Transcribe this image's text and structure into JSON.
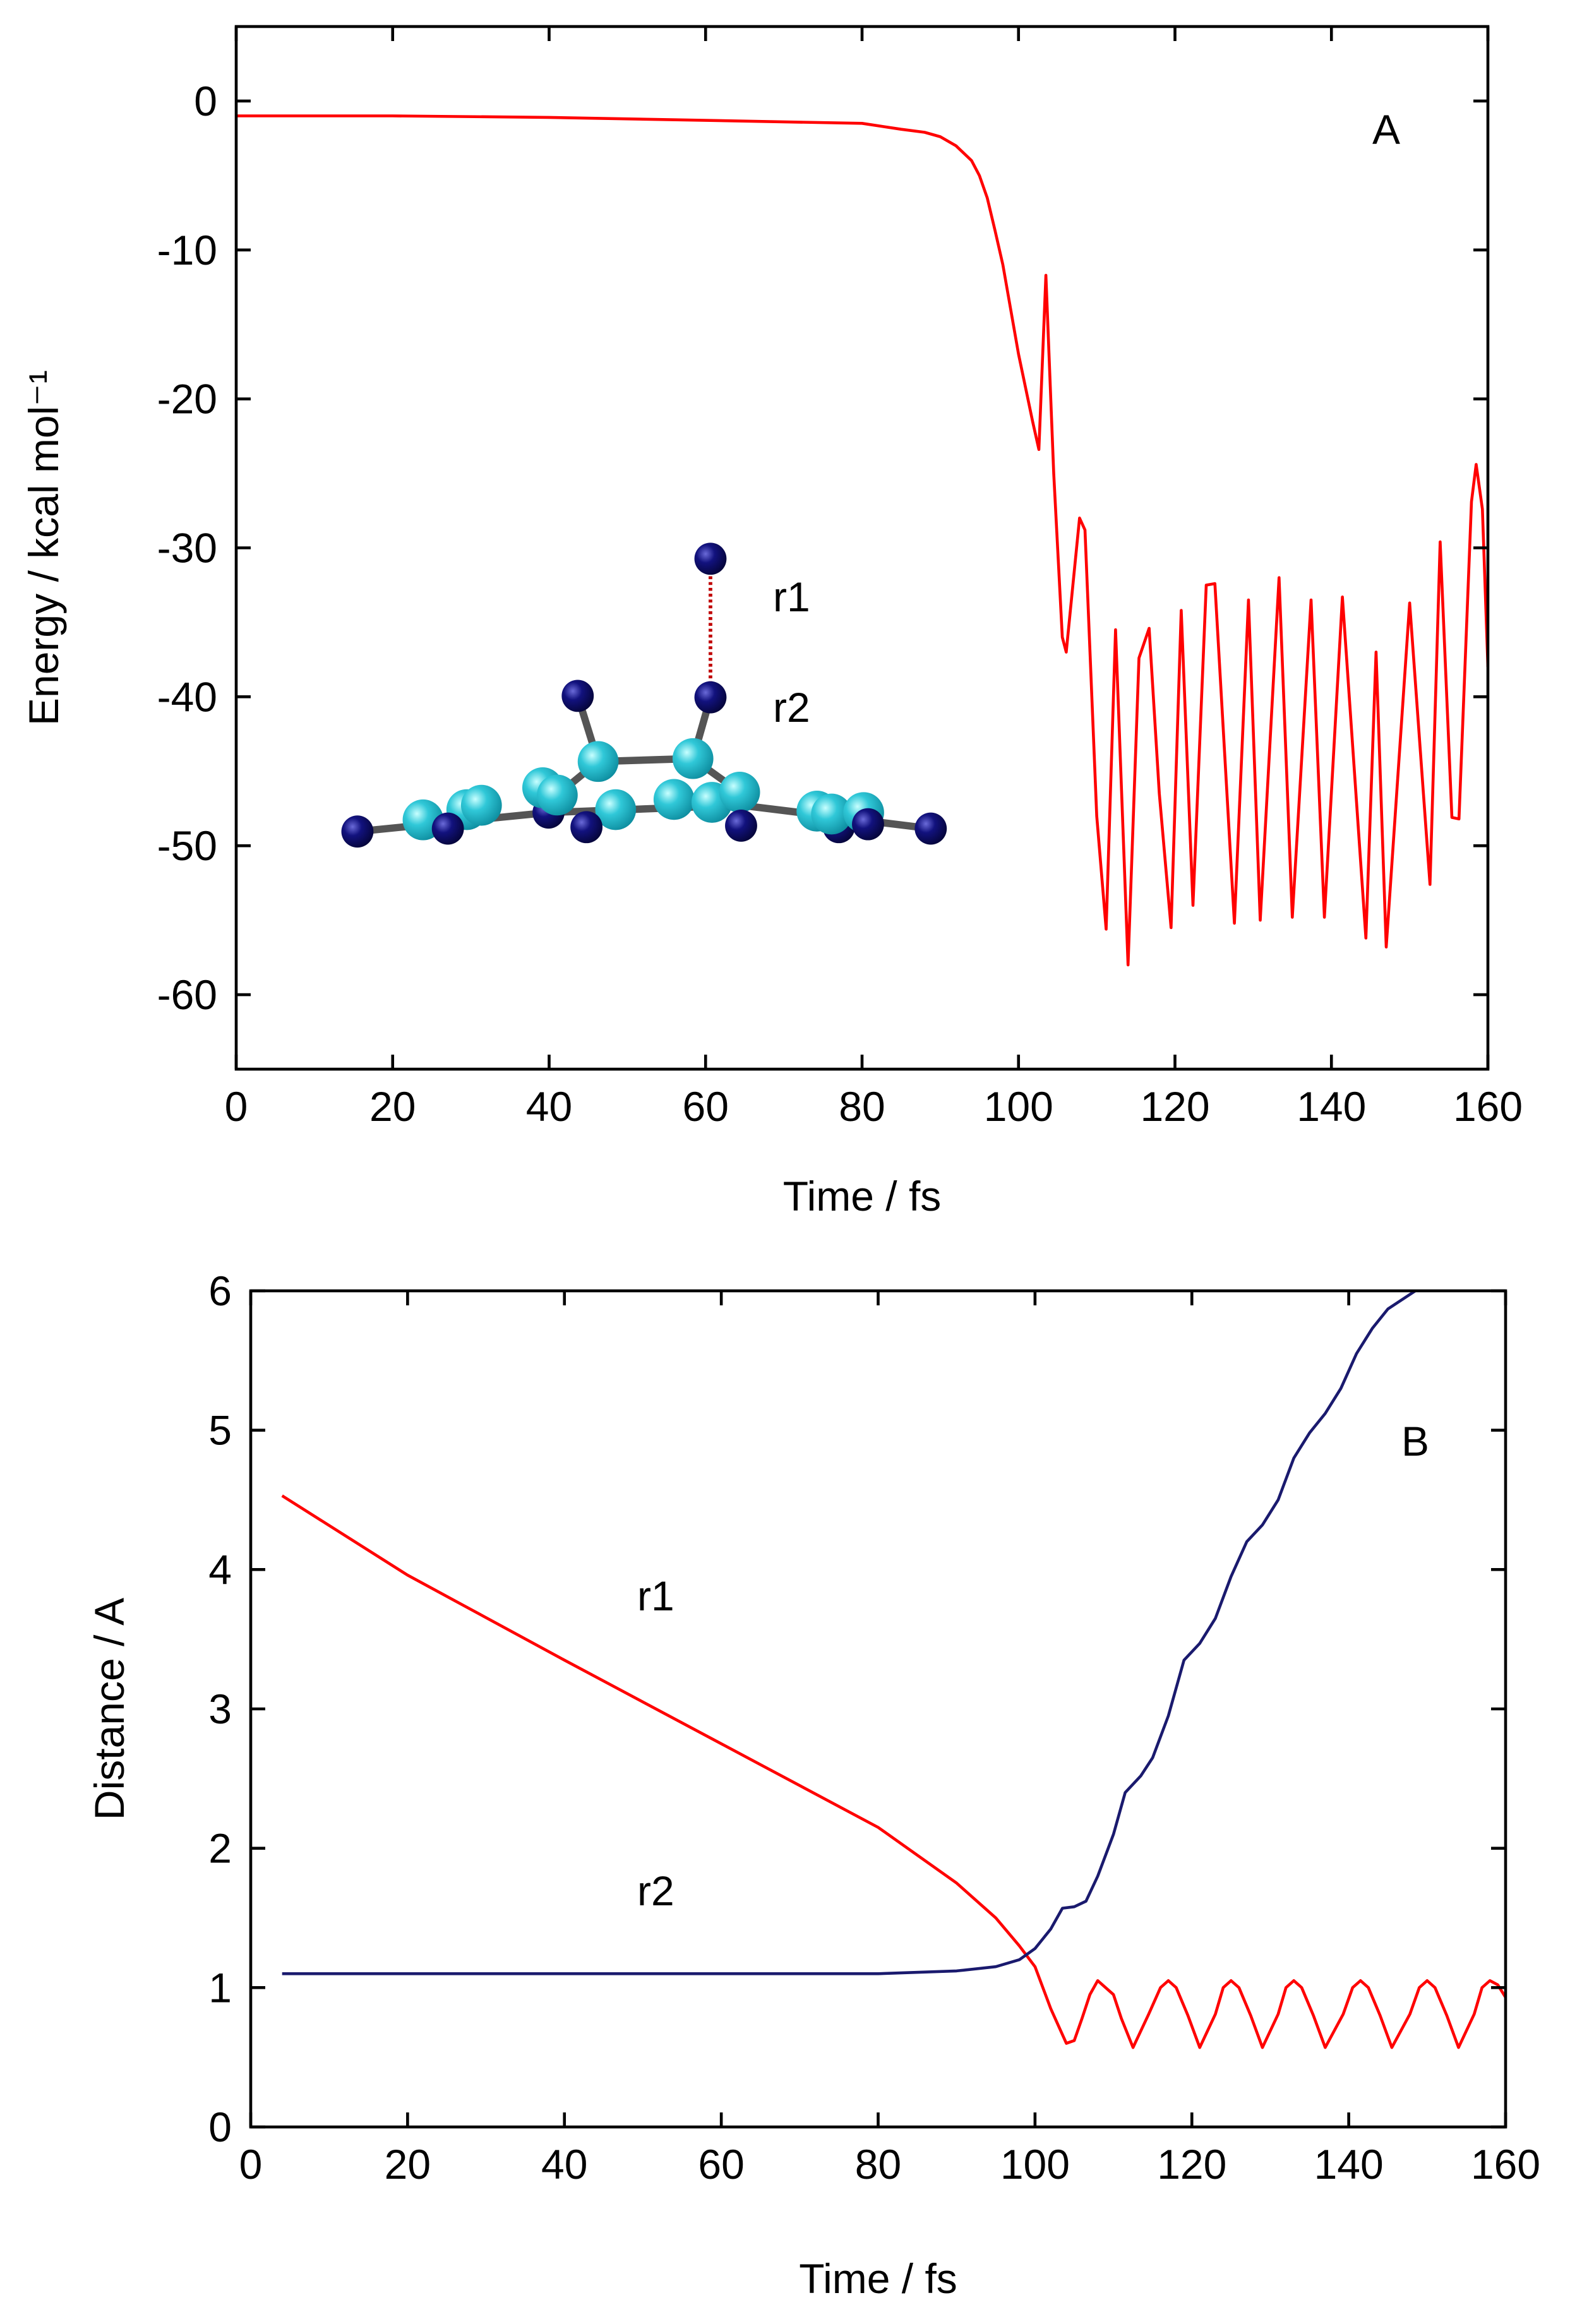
{
  "chart_data": [
    {
      "type": "line",
      "panel_label": "A",
      "x_label": "Time / fs",
      "y_label": "Energy / kcal mol⁻¹",
      "xlim": [
        0,
        160
      ],
      "ylim": [
        -65,
        5
      ],
      "xticks": [
        0,
        20,
        40,
        60,
        80,
        100,
        120,
        140,
        160
      ],
      "yticks": [
        -60,
        -50,
        -40,
        -30,
        -20,
        -10,
        0
      ],
      "annotations": [
        "r1",
        "r2"
      ],
      "series": [
        {
          "color": "#ff0000",
          "x": [
            0,
            20,
            40,
            60,
            80,
            85,
            88,
            90,
            92,
            94,
            95,
            96,
            97,
            98,
            99,
            100,
            100.8,
            101.8,
            102.6,
            103.5,
            104.5,
            105.6,
            106.1,
            107.8,
            108.5,
            110,
            111.2,
            112.4,
            114,
            115.4,
            116.7,
            118,
            119.5,
            120.8,
            122.3,
            124,
            125.1,
            127.6,
            129.4,
            130.9,
            133.3,
            135,
            137.4,
            139.1,
            141.4,
            144.4,
            145.7,
            147,
            150,
            152.6,
            153.9,
            155.4,
            156.3,
            157.9,
            158.5,
            159.3,
            160
          ],
          "values": [
            -1,
            -1,
            -1.1,
            -1.3,
            -1.5,
            -1.9,
            -2.1,
            -2.4,
            -3,
            -4,
            -5,
            -6.5,
            -8.7,
            -11,
            -14,
            -17,
            -19,
            -21.5,
            -23.4,
            -11.7,
            -25,
            -36,
            -37,
            -28,
            -28.8,
            -48,
            -55.6,
            -35.5,
            -58,
            -37.4,
            -35.4,
            -46.5,
            -55.5,
            -34.2,
            -54,
            -32.5,
            -32.4,
            -55.2,
            -33.5,
            -55,
            -32,
            -54.8,
            -33.5,
            -54.8,
            -33.3,
            -56.2,
            -37,
            -56.8,
            -33.7,
            -52.6,
            -29.6,
            -48.1,
            -48.2,
            -26.9,
            -24.4,
            -27.4,
            -38
          ]
        }
      ]
    },
    {
      "type": "line",
      "panel_label": "B",
      "x_label": "Time / fs",
      "y_label": "Distance / A",
      "xlim": [
        0,
        160
      ],
      "ylim": [
        0,
        6
      ],
      "xticks": [
        0,
        20,
        40,
        60,
        80,
        100,
        120,
        140,
        160
      ],
      "yticks": [
        0,
        1,
        2,
        3,
        4,
        5,
        6
      ],
      "annotations": [
        "r1",
        "r2"
      ],
      "series": [
        {
          "color": "#ff0000",
          "x": [
            4,
            20,
            40,
            60,
            80,
            90,
            95,
            98,
            100,
            102,
            104,
            105,
            106,
            107,
            108,
            110,
            111,
            112.5,
            114.5,
            116,
            117,
            118,
            119.5,
            121,
            123,
            124,
            125,
            126,
            127.5,
            129,
            131,
            132,
            133,
            134,
            135.5,
            137,
            139.3,
            140.5,
            141.5,
            142.5,
            144,
            145.5,
            147.8,
            149,
            150,
            151,
            152.5,
            154,
            156,
            157,
            158,
            159,
            160
          ],
          "values": [
            4.53,
            3.96,
            3.35,
            2.75,
            2.15,
            1.75,
            1.5,
            1.3,
            1.15,
            0.85,
            0.6,
            0.62,
            0.78,
            0.95,
            1.05,
            0.95,
            0.78,
            0.57,
            0.81,
            1.0,
            1.05,
            1.0,
            0.8,
            0.57,
            0.81,
            1.0,
            1.05,
            1.0,
            0.8,
            0.57,
            0.81,
            1.0,
            1.05,
            1.0,
            0.8,
            0.57,
            0.81,
            1.0,
            1.05,
            1.0,
            0.8,
            0.57,
            0.81,
            1.0,
            1.05,
            1.0,
            0.8,
            0.57,
            0.81,
            1.0,
            1.05,
            1.02,
            0.93
          ]
        },
        {
          "color": "#1a1a6e",
          "x": [
            4,
            20,
            40,
            60,
            80,
            90,
            95,
            98,
            100,
            102,
            103.5,
            105,
            106.5,
            108,
            110,
            111.5,
            113.5,
            115,
            117,
            119,
            121,
            123,
            125,
            127,
            129,
            131,
            133,
            135,
            137,
            139,
            141,
            143,
            145,
            148.5
          ],
          "values": [
            1.1,
            1.1,
            1.1,
            1.1,
            1.1,
            1.12,
            1.15,
            1.2,
            1.28,
            1.42,
            1.57,
            1.58,
            1.62,
            1.8,
            2.1,
            2.4,
            2.52,
            2.65,
            2.95,
            3.35,
            3.47,
            3.65,
            3.95,
            4.2,
            4.32,
            4.5,
            4.8,
            4.98,
            5.12,
            5.3,
            5.55,
            5.73,
            5.87,
            6.0
          ]
        }
      ]
    }
  ]
}
